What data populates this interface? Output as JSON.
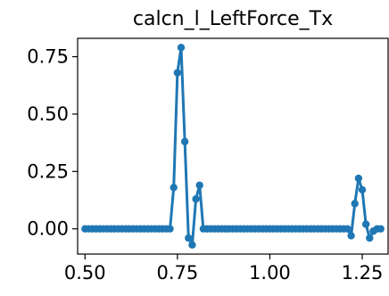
{
  "chart_data": {
    "type": "line",
    "title": "calcn_l_LeftForce_Tx",
    "xlabel": "",
    "ylabel": "",
    "xlim": [
      0.48,
      1.32
    ],
    "ylim": [
      -0.11,
      0.83
    ],
    "grid": false,
    "xticks": [
      0.5,
      0.75,
      1.0,
      1.25
    ],
    "xtick_labels": [
      "0.50",
      "0.75",
      "1.00",
      "1.25"
    ],
    "yticks": [
      0.0,
      0.25,
      0.5,
      0.75
    ],
    "ytick_labels": [
      "0.00",
      "0.25",
      "0.50",
      "0.75"
    ],
    "color": "#1f77b4",
    "series": [
      {
        "x": [
          0.5,
          0.51,
          0.52,
          0.53,
          0.54,
          0.55,
          0.56,
          0.57,
          0.58,
          0.59,
          0.6,
          0.61,
          0.62,
          0.63,
          0.64,
          0.65,
          0.66,
          0.67,
          0.68,
          0.69,
          0.7,
          0.71,
          0.72,
          0.73,
          0.74,
          0.75,
          0.76,
          0.77,
          0.78,
          0.79,
          0.8,
          0.81,
          0.82,
          0.83,
          0.84,
          0.85,
          0.86,
          0.87,
          0.88,
          0.89,
          0.9,
          0.91,
          0.92,
          0.93,
          0.94,
          0.95,
          0.96,
          0.97,
          0.98,
          0.99,
          1.0,
          1.01,
          1.02,
          1.03,
          1.04,
          1.05,
          1.06,
          1.07,
          1.08,
          1.09,
          1.1,
          1.11,
          1.12,
          1.13,
          1.14,
          1.15,
          1.16,
          1.17,
          1.18,
          1.19,
          1.2,
          1.21,
          1.22,
          1.23,
          1.24,
          1.25,
          1.26,
          1.27,
          1.28,
          1.29,
          1.3
        ],
        "y": [
          0,
          0,
          0,
          0,
          0,
          0,
          0,
          0,
          0,
          0,
          0,
          0,
          0,
          0,
          0,
          0,
          0,
          0,
          0,
          0,
          0,
          0,
          0,
          0,
          0.18,
          0.68,
          0.79,
          0.38,
          -0.04,
          -0.07,
          0.13,
          0.19,
          0,
          0,
          0,
          0,
          0,
          0,
          0,
          0,
          0,
          0,
          0,
          0,
          0,
          0,
          0,
          0,
          0,
          0,
          0,
          0,
          0,
          0,
          0,
          0,
          0,
          0,
          0,
          0,
          0,
          0,
          0,
          0,
          0,
          0,
          0,
          0,
          0,
          0,
          0,
          0,
          -0.03,
          0.11,
          0.22,
          0.17,
          0.02,
          -0.04,
          -0.01,
          0,
          0
        ]
      }
    ]
  }
}
